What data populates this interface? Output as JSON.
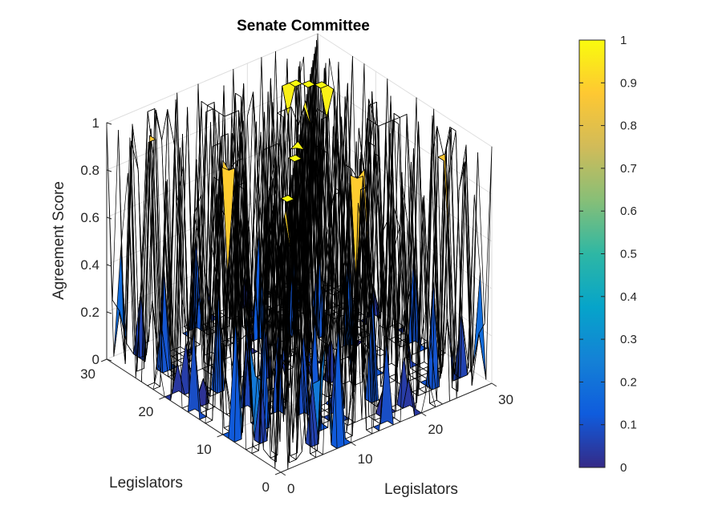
{
  "chart_data": {
    "type": "surface-3d",
    "title": "Senate Committee",
    "xlabel": "Legislators",
    "ylabel": "Legislators",
    "zlabel": "Agreement Score",
    "xlim": [
      0,
      30
    ],
    "ylim": [
      0,
      30
    ],
    "zlim": [
      0,
      1
    ],
    "x_ticks": [
      "0",
      "10",
      "20",
      "30"
    ],
    "y_ticks": [
      "0",
      "10",
      "20",
      "30"
    ],
    "z_ticks": [
      "0",
      "0.2",
      "0.4",
      "0.6",
      "0.8",
      "1"
    ],
    "grid": true,
    "colormap": "parula",
    "colorbar": {
      "position": "right",
      "ticks": [
        "0",
        "0.1",
        "0.2",
        "0.3",
        "0.4",
        "0.5",
        "0.6",
        "0.7",
        "0.8",
        "0.9",
        "1"
      ],
      "limits": [
        0,
        1
      ]
    },
    "colormap_stops": [
      "#352a87",
      "#0f5cdd",
      "#1481d6",
      "#06a4ca",
      "#2eb7a4",
      "#87bf77",
      "#d1bb59",
      "#fec832",
      "#f9fb0e"
    ],
    "edge_color": "#000000",
    "matrix_size": 30,
    "seed": 7
  }
}
